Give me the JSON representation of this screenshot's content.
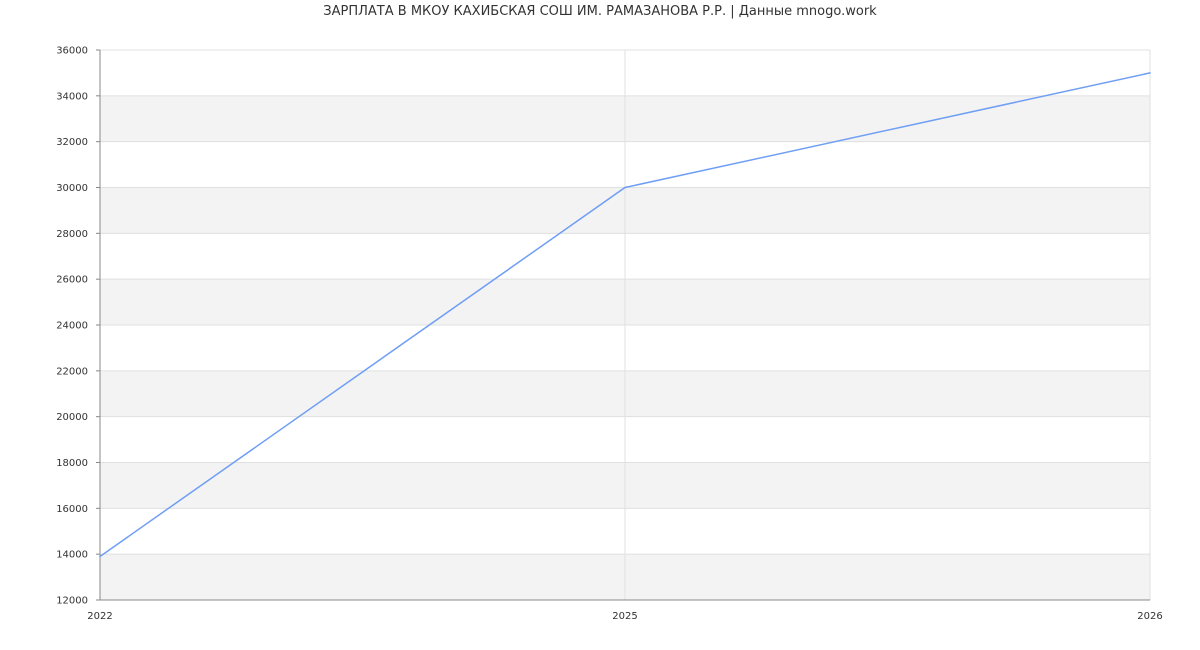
{
  "chart_data": {
    "type": "line",
    "title": "ЗАРПЛАТА В МКОУ КАХИБСКАЯ СОШ ИМ. РАМАЗАНОВА Р.Р. | Данные mnogo.work",
    "categories": [
      "2022",
      "2025",
      "2026"
    ],
    "series": [
      {
        "values": [
          13900,
          30000,
          35000
        ],
        "color": "#6f9ef5"
      }
    ],
    "ylim": [
      12000,
      36000
    ],
    "yticks": [
      12000,
      14000,
      16000,
      18000,
      20000,
      22000,
      24000,
      26000,
      28000,
      30000,
      32000,
      34000,
      36000
    ],
    "grid": true,
    "band_color": "#f3f3f3",
    "grid_color": "#e0e0e0"
  }
}
